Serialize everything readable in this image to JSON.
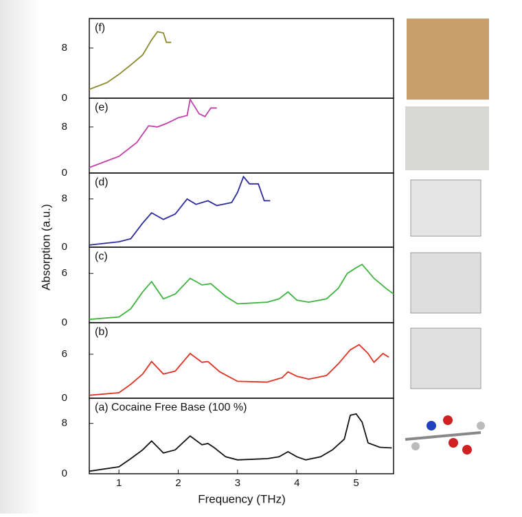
{
  "axis_labels": {
    "x": "Frequency (THz)",
    "y": "Absorption (a.u.)"
  },
  "chart_data": [
    {
      "type": "line",
      "label": "(f)",
      "color": "#8a8a2a",
      "xlim": [
        0.5,
        5.63
      ],
      "ylim": [
        0,
        12.7
      ],
      "yticks": [
        0,
        8
      ],
      "x": [
        0.5,
        0.8,
        1.0,
        1.2,
        1.4,
        1.55,
        1.65,
        1.75,
        1.8,
        1.88
      ],
      "values": [
        1.4,
        2.5,
        3.8,
        5.3,
        6.9,
        9.3,
        10.6,
        10.4,
        8.9,
        8.9
      ]
    },
    {
      "type": "line",
      "label": "(e)",
      "color": "#c040a8",
      "xlim": [
        0.5,
        5.63
      ],
      "ylim": [
        0,
        13.0
      ],
      "yticks": [
        0,
        8
      ],
      "x": [
        0.5,
        1.0,
        1.3,
        1.5,
        1.65,
        1.8,
        2.0,
        2.15,
        2.2,
        2.35,
        2.45,
        2.55,
        2.65
      ],
      "values": [
        0.95,
        2.9,
        5.3,
        8.2,
        8.0,
        8.6,
        9.6,
        10.0,
        12.8,
        10.3,
        9.8,
        11.3,
        11.3
      ]
    },
    {
      "type": "line",
      "label": "(d)",
      "color": "#2a2a9a",
      "xlim": [
        0.5,
        5.63
      ],
      "ylim": [
        0,
        12.3
      ],
      "yticks": [
        0,
        8
      ],
      "x": [
        0.5,
        1.0,
        1.2,
        1.4,
        1.55,
        1.75,
        1.95,
        2.15,
        2.3,
        2.5,
        2.65,
        2.9,
        3.0,
        3.1,
        3.2,
        3.35,
        3.45,
        3.55
      ],
      "values": [
        0.35,
        0.9,
        1.4,
        4.0,
        5.7,
        4.6,
        5.5,
        8.0,
        7.1,
        7.7,
        6.9,
        7.4,
        9.1,
        11.7,
        10.5,
        10.5,
        7.7,
        7.7
      ]
    },
    {
      "type": "line",
      "label": "(c)",
      "color": "#3cb43c",
      "xlim": [
        0.5,
        5.63
      ],
      "ylim": [
        0,
        9.2
      ],
      "yticks": [
        0,
        6
      ],
      "x": [
        0.5,
        1.0,
        1.2,
        1.4,
        1.55,
        1.75,
        1.95,
        2.2,
        2.4,
        2.55,
        2.8,
        3.0,
        3.5,
        3.7,
        3.85,
        4.0,
        4.2,
        4.5,
        4.7,
        4.85,
        5.0,
        5.1,
        5.3,
        5.5,
        5.63
      ],
      "values": [
        0.4,
        0.7,
        1.7,
        3.75,
        5.0,
        2.9,
        3.5,
        5.4,
        4.6,
        4.75,
        3.2,
        2.3,
        2.5,
        2.9,
        3.75,
        2.75,
        2.5,
        2.9,
        4.2,
        6.0,
        6.7,
        7.1,
        5.4,
        4.2,
        3.5
      ]
    },
    {
      "type": "line",
      "label": "(b)",
      "color": "#e03020",
      "xlim": [
        0.5,
        5.63
      ],
      "ylim": [
        0,
        10.3
      ],
      "yticks": [
        0,
        6
      ],
      "x": [
        0.5,
        1.0,
        1.2,
        1.4,
        1.55,
        1.75,
        1.95,
        2.2,
        2.4,
        2.5,
        2.7,
        3.0,
        3.5,
        3.75,
        3.85,
        4.0,
        4.2,
        4.5,
        4.7,
        4.9,
        5.05,
        5.2,
        5.3,
        5.45,
        5.55
      ],
      "values": [
        0.4,
        0.75,
        1.9,
        3.3,
        5.0,
        3.3,
        3.7,
        6.1,
        4.9,
        5.0,
        3.6,
        2.3,
        2.2,
        2.8,
        3.6,
        3.0,
        2.6,
        3.1,
        4.7,
        6.6,
        7.3,
        6.1,
        4.9,
        6.1,
        5.6
      ]
    },
    {
      "type": "line",
      "label": "(a) Cocaine Free Base (100 %)",
      "color": "#111111",
      "xlim": [
        0.5,
        5.63
      ],
      "ylim": [
        0,
        12.0
      ],
      "yticks": [
        0,
        8
      ],
      "xticks": [
        1,
        2,
        3,
        4,
        5
      ],
      "x": [
        0.5,
        1.0,
        1.2,
        1.4,
        1.55,
        1.75,
        1.95,
        2.2,
        2.4,
        2.5,
        2.6,
        2.8,
        3.0,
        3.5,
        3.7,
        3.85,
        4.0,
        4.15,
        4.4,
        4.6,
        4.8,
        4.9,
        5.0,
        5.1,
        5.2,
        5.4,
        5.6
      ],
      "values": [
        0.4,
        1.1,
        2.4,
        3.8,
        5.2,
        3.3,
        3.8,
        6.0,
        4.6,
        4.8,
        4.2,
        2.7,
        2.2,
        2.4,
        2.7,
        3.5,
        2.7,
        2.2,
        2.7,
        3.8,
        5.5,
        9.3,
        9.5,
        8.2,
        4.9,
        4.2,
        4.1
      ]
    }
  ]
}
